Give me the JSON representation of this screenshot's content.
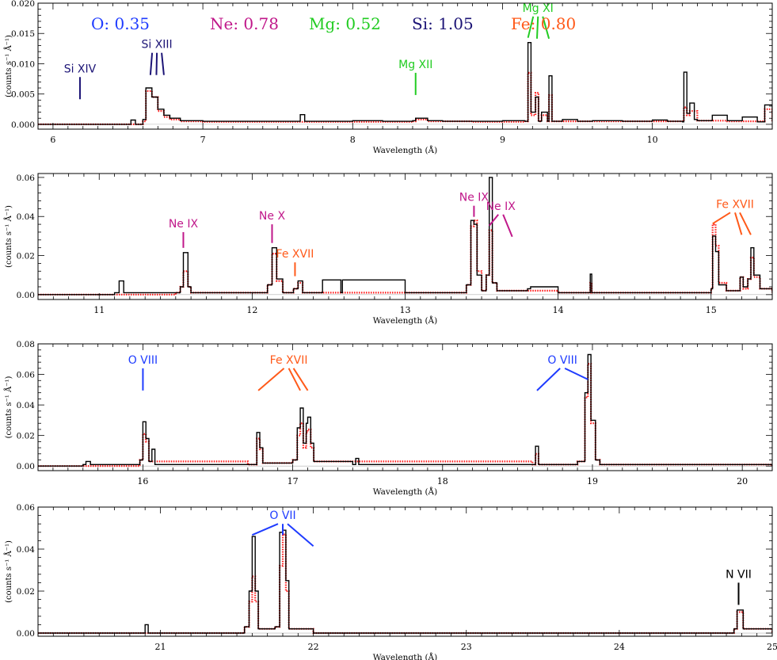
{
  "chart_data": [
    {
      "type": "line",
      "xlim": [
        5.9,
        10.8
      ],
      "ylim": [
        -0.0008,
        0.02
      ],
      "xticks": [
        6,
        7,
        8,
        9,
        10
      ],
      "yticks": [
        0.0,
        0.005,
        0.01,
        0.015,
        0.02
      ],
      "ytick_labels": [
        "0.000",
        "0.005",
        "0.010",
        "0.015",
        "0.020"
      ],
      "xlabel": "Wavelength (Å)",
      "ylabel": "(counts s⁻¹ Å⁻¹)",
      "abundances": [
        {
          "label": "O: 0.35",
          "color": "#1f3cff"
        },
        {
          "label": "Ne: 0.78",
          "color": "#c0188a"
        },
        {
          "label": "Mg: 0.52",
          "color": "#22cc22"
        },
        {
          "label": "Si: 1.05",
          "color": "#1c1476"
        },
        {
          "label": "Fe: 0.80",
          "color": "#ff5a1a"
        }
      ],
      "lines": [
        {
          "label": "Si XIV",
          "color": "#1c1476",
          "x": [
            6.18
          ],
          "yl": 0.0078
        },
        {
          "label": "Si XIII",
          "color": "#1c1476",
          "x": [
            6.65,
            6.69,
            6.74
          ],
          "yl": 0.0118
        },
        {
          "label": "Mg XII",
          "color": "#22cc22",
          "x": [
            8.42
          ],
          "yl": 0.0085
        },
        {
          "label": "Mg XI",
          "color": "#22cc22",
          "x": [
            9.17,
            9.23,
            9.31
          ],
          "yl": 0.0178
        }
      ],
      "series": [
        {
          "name": "observed",
          "color": "#000000",
          "x": [
            5.9,
            6.5,
            6.52,
            6.55,
            6.6,
            6.62,
            6.66,
            6.7,
            6.74,
            6.78,
            6.85,
            7.0,
            7.3,
            7.6,
            7.65,
            7.68,
            7.75,
            8.0,
            8.2,
            8.4,
            8.42,
            8.5,
            8.6,
            8.8,
            9.0,
            9.15,
            9.17,
            9.19,
            9.22,
            9.24,
            9.26,
            9.3,
            9.31,
            9.33,
            9.4,
            9.5,
            9.6,
            9.8,
            10.0,
            10.1,
            10.2,
            10.21,
            10.23,
            10.25,
            10.28,
            10.3,
            10.4,
            10.5,
            10.6,
            10.7,
            10.75,
            10.8
          ],
          "y": [
            0,
            0,
            0.0007,
            0,
            0.0008,
            0.006,
            0.0045,
            0.0025,
            0.0015,
            0.001,
            0.0006,
            0.0005,
            0.0005,
            0.0005,
            0.0016,
            0.0005,
            0.0005,
            0.0006,
            0.0005,
            0.0006,
            0.001,
            0.0006,
            0.0005,
            0.0005,
            0.0006,
            0.0005,
            0.0135,
            0.002,
            0.0045,
            0.0005,
            0.002,
            0.0005,
            0.008,
            0.0005,
            0.0008,
            0.0005,
            0.0006,
            0.0005,
            0.0007,
            0.0005,
            0.0004,
            0.0086,
            0.0018,
            0.0035,
            0.0008,
            0.0006,
            0.0015,
            0.0006,
            0.0012,
            0.0004,
            0.0032,
            0.0005
          ]
        },
        {
          "name": "model",
          "color": "#ff1a1a",
          "x": [
            5.9,
            6.5,
            6.6,
            6.62,
            6.66,
            6.7,
            6.74,
            6.78,
            6.85,
            7.0,
            7.3,
            7.6,
            8.0,
            8.4,
            8.42,
            8.5,
            8.8,
            9.15,
            9.17,
            9.19,
            9.22,
            9.24,
            9.26,
            9.3,
            9.31,
            9.33,
            9.5,
            9.8,
            10.0,
            10.2,
            10.21,
            10.23,
            10.25,
            10.3,
            10.5,
            10.7,
            10.75,
            10.8
          ],
          "y": [
            0,
            0,
            0.0005,
            0.0055,
            0.0045,
            0.0022,
            0.0012,
            0.0008,
            0.0005,
            0.0004,
            0.0004,
            0.0004,
            0.0004,
            0.0005,
            0.0008,
            0.0005,
            0.0004,
            0.0005,
            0.0085,
            0.0015,
            0.0052,
            0.0005,
            0.0015,
            0.0005,
            0.0048,
            0.0005,
            0.0005,
            0.0005,
            0.0005,
            0.0005,
            0.0028,
            0.0015,
            0.0022,
            0.0006,
            0.0005,
            0.0005,
            0.0025,
            0.0005
          ]
        }
      ]
    },
    {
      "type": "line",
      "xlim": [
        10.6,
        15.4
      ],
      "ylim": [
        -0.0025,
        0.062
      ],
      "xticks": [
        11,
        12,
        13,
        14,
        15
      ],
      "yticks": [
        0.0,
        0.02,
        0.04,
        0.06
      ],
      "ytick_labels": [
        "0.00",
        "0.02",
        "0.04",
        "0.06"
      ],
      "xlabel": "Wavelength (Å)",
      "ylabel": "(counts s⁻¹ Å⁻¹)",
      "lines": [
        {
          "label": "Ne IX",
          "color": "#c0188a",
          "x": [
            11.55
          ],
          "yl": 0.032
        },
        {
          "label": "Ne X",
          "color": "#c0188a",
          "x": [
            12.13
          ],
          "yl": 0.036
        },
        {
          "label": "Fe XVII",
          "color": "#ff5a1a",
          "x": [
            12.28
          ],
          "yl": 0.0165
        },
        {
          "label": "Ne IX",
          "color": "#c0188a",
          "x": [
            13.45
          ],
          "yl": 0.0455
        },
        {
          "label": "Ne IX",
          "color": "#c0188a",
          "x": [
            13.55,
            13.7
          ],
          "yl": 0.041
        },
        {
          "label": "Fe XVII",
          "color": "#ff5a1a",
          "x": [
            15.01,
            15.2,
            15.26
          ],
          "yl": 0.042
        }
      ],
      "series": [
        {
          "name": "observed",
          "color": "#000000",
          "x": [
            10.6,
            11.1,
            11.13,
            11.16,
            11.5,
            11.53,
            11.55,
            11.58,
            11.6,
            12.0,
            12.1,
            12.13,
            12.16,
            12.2,
            12.27,
            12.3,
            12.33,
            12.45,
            12.46,
            12.58,
            12.59,
            13.0,
            13.4,
            13.43,
            13.45,
            13.47,
            13.5,
            13.53,
            13.55,
            13.57,
            13.6,
            13.7,
            13.8,
            13.82,
            14.0,
            14.2,
            14.21,
            14.22,
            14.6,
            15.0,
            15.01,
            15.03,
            15.05,
            15.1,
            15.17,
            15.19,
            15.21,
            15.24,
            15.26,
            15.28,
            15.32,
            15.4
          ],
          "y": [
            0,
            0.001,
            0.007,
            0.001,
            0.001,
            0.004,
            0.0215,
            0.004,
            0.001,
            0.001,
            0.005,
            0.024,
            0.008,
            0.001,
            0.003,
            0.007,
            0.001,
            0.001,
            0.0075,
            0.001,
            0.0075,
            0.001,
            0.005,
            0.038,
            0.036,
            0.01,
            0.002,
            0.01,
            0.06,
            0.006,
            0.002,
            0.002,
            0.003,
            0.004,
            0.001,
            0.001,
            0.0105,
            0.001,
            0.001,
            0.003,
            0.03,
            0.022,
            0.005,
            0.002,
            0.002,
            0.009,
            0.004,
            0.008,
            0.024,
            0.01,
            0.003,
            0.001
          ]
        },
        {
          "name": "model",
          "color": "#ff1a1a",
          "x": [
            10.6,
            11.5,
            11.53,
            11.55,
            11.58,
            11.6,
            12.0,
            12.1,
            12.13,
            12.16,
            12.2,
            12.27,
            12.3,
            12.33,
            13.0,
            13.4,
            13.43,
            13.45,
            13.47,
            13.5,
            13.53,
            13.55,
            13.57,
            13.6,
            14.0,
            14.2,
            14.21,
            14.22,
            15.0,
            15.01,
            15.03,
            15.05,
            15.1,
            15.17,
            15.19,
            15.21,
            15.24,
            15.26,
            15.28,
            15.32,
            15.4
          ],
          "y": [
            0,
            0.001,
            0.004,
            0.012,
            0.004,
            0.001,
            0.001,
            0.005,
            0.021,
            0.007,
            0.001,
            0.003,
            0.006,
            0.001,
            0.001,
            0.005,
            0.035,
            0.038,
            0.012,
            0.002,
            0.01,
            0.033,
            0.006,
            0.002,
            0.001,
            0.001,
            0.006,
            0.001,
            0.003,
            0.036,
            0.025,
            0.006,
            0.002,
            0.002,
            0.009,
            0.003,
            0.008,
            0.019,
            0.009,
            0.003,
            0.001
          ]
        }
      ]
    },
    {
      "type": "line",
      "xlim": [
        15.3,
        20.2
      ],
      "ylim": [
        -0.003,
        0.08
      ],
      "xticks": [
        16,
        17,
        18,
        19,
        20
      ],
      "yticks": [
        0.0,
        0.02,
        0.04,
        0.06,
        0.08
      ],
      "ytick_labels": [
        "0.00",
        "0.02",
        "0.04",
        "0.06",
        "0.08"
      ],
      "xlabel": "Wavelength (Å)",
      "ylabel": "(counts s⁻¹ Å⁻¹)",
      "lines": [
        {
          "label": "O VIII",
          "color": "#1f3cff",
          "x": [
            16.0
          ],
          "yl": 0.064
        },
        {
          "label": "Fe XVII",
          "color": "#ff5a1a",
          "x": [
            16.77,
            17.05,
            17.1
          ],
          "yl": 0.064
        },
        {
          "label": "O VIII",
          "color": "#1f3cff",
          "x": [
            18.63,
            18.97
          ],
          "yl": 0.064
        }
      ],
      "series": [
        {
          "name": "observed",
          "color": "#000000",
          "x": [
            15.3,
            15.6,
            15.62,
            15.65,
            15.98,
            16.0,
            16.02,
            16.04,
            16.06,
            16.08,
            16.7,
            16.76,
            16.78,
            16.8,
            17.0,
            17.03,
            17.05,
            17.07,
            17.09,
            17.1,
            17.12,
            17.14,
            17.4,
            17.42,
            17.44,
            18.0,
            18.6,
            18.62,
            18.64,
            18.9,
            18.95,
            18.97,
            18.99,
            19.02,
            19.05,
            20.2
          ],
          "y": [
            0,
            0.001,
            0.003,
            0.001,
            0.004,
            0.029,
            0.018,
            0.003,
            0.011,
            0.001,
            0.001,
            0.022,
            0.012,
            0.002,
            0.004,
            0.025,
            0.038,
            0.015,
            0.028,
            0.032,
            0.015,
            0.003,
            0.001,
            0.005,
            0.001,
            0.001,
            0.001,
            0.013,
            0.001,
            0.003,
            0.048,
            0.073,
            0.03,
            0.004,
            0.001,
            0
          ]
        },
        {
          "name": "model",
          "color": "#ff1a1a",
          "x": [
            15.3,
            15.98,
            16.0,
            16.02,
            16.04,
            16.7,
            16.76,
            16.78,
            16.8,
            17.0,
            17.03,
            17.05,
            17.07,
            17.09,
            17.1,
            17.12,
            17.14,
            18.6,
            18.62,
            18.64,
            18.9,
            18.95,
            18.97,
            18.99,
            19.02,
            19.05,
            20.2
          ],
          "y": [
            0,
            0.004,
            0.021,
            0.016,
            0.003,
            0.001,
            0.018,
            0.011,
            0.002,
            0.004,
            0.02,
            0.028,
            0.012,
            0.022,
            0.024,
            0.012,
            0.003,
            0.001,
            0.008,
            0.001,
            0.003,
            0.045,
            0.067,
            0.028,
            0.004,
            0.001,
            0
          ]
        }
      ]
    },
    {
      "type": "line",
      "xlim": [
        20.2,
        25.0
      ],
      "ylim": [
        -0.0015,
        0.06
      ],
      "xticks": [
        21,
        22,
        23,
        24,
        25
      ],
      "yticks": [
        0.0,
        0.02,
        0.04,
        0.06
      ],
      "ytick_labels": [
        "0.00",
        "0.02",
        "0.04",
        "0.06"
      ],
      "xlabel": "Wavelength (Å)",
      "ylabel": "(counts s⁻¹ Å⁻¹)",
      "lines": [
        {
          "label": "O VII",
          "color": "#1f3cff",
          "x": [
            21.6,
            21.8,
            22.0
          ],
          "yl": 0.052
        },
        {
          "label": "N VII",
          "color": "#000000",
          "x": [
            24.78
          ],
          "yl": 0.024
        }
      ],
      "series": [
        {
          "name": "observed",
          "color": "#000000",
          "x": [
            20.2,
            20.88,
            20.9,
            20.92,
            21.55,
            21.58,
            21.6,
            21.62,
            21.64,
            21.75,
            21.78,
            21.8,
            21.82,
            21.84,
            22.0,
            24.75,
            24.77,
            24.79,
            24.81,
            25.0
          ],
          "y": [
            0,
            0,
            0.004,
            0,
            0.003,
            0.02,
            0.046,
            0.02,
            0.002,
            0.003,
            0.048,
            0.049,
            0.025,
            0.002,
            0,
            0.002,
            0.011,
            0.011,
            0.002,
            0
          ]
        },
        {
          "name": "model",
          "color": "#ff1a1a",
          "x": [
            20.2,
            21.55,
            21.58,
            21.6,
            21.62,
            21.64,
            21.75,
            21.78,
            21.8,
            21.82,
            21.84,
            22.0,
            24.75,
            24.77,
            24.79,
            24.81,
            25.0
          ],
          "y": [
            0,
            0.003,
            0.015,
            0.027,
            0.015,
            0.002,
            0.003,
            0.032,
            0.047,
            0.02,
            0.002,
            0,
            0.002,
            0.01,
            0.01,
            0.002,
            0
          ]
        }
      ]
    }
  ]
}
